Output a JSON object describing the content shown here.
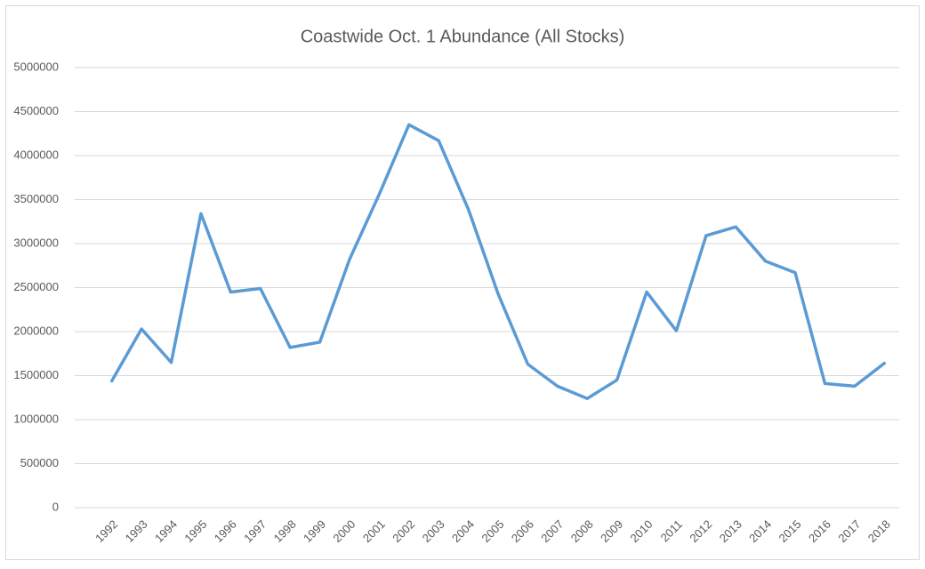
{
  "chart_data": {
    "type": "line",
    "title": "Coastwide Oct. 1 Abundance (All Stocks)",
    "categories": [
      "1992",
      "1993",
      "1994",
      "1995",
      "1996",
      "1997",
      "1998",
      "1999",
      "2000",
      "2001",
      "2002",
      "2003",
      "2004",
      "2005",
      "2006",
      "2007",
      "2008",
      "2009",
      "2010",
      "2011",
      "2012",
      "2013",
      "2014",
      "2015",
      "2016",
      "2017",
      "2018"
    ],
    "series": [
      {
        "name": "Coastwide Oct. 1 Abundance",
        "color": "#5b9bd5",
        "values": [
          1440000,
          2030000,
          1650000,
          3340000,
          2450000,
          2490000,
          1820000,
          1880000,
          2820000,
          3560000,
          4350000,
          4170000,
          3390000,
          2430000,
          1630000,
          1380000,
          1240000,
          1450000,
          2450000,
          2010000,
          3090000,
          3190000,
          2800000,
          2670000,
          1410000,
          1380000,
          1640000
        ]
      }
    ],
    "ylim": [
      0,
      5000000
    ],
    "yticks": [
      0,
      500000,
      1000000,
      1500000,
      2000000,
      2500000,
      3000000,
      3500000,
      4000000,
      4500000,
      5000000
    ],
    "grid": true
  }
}
